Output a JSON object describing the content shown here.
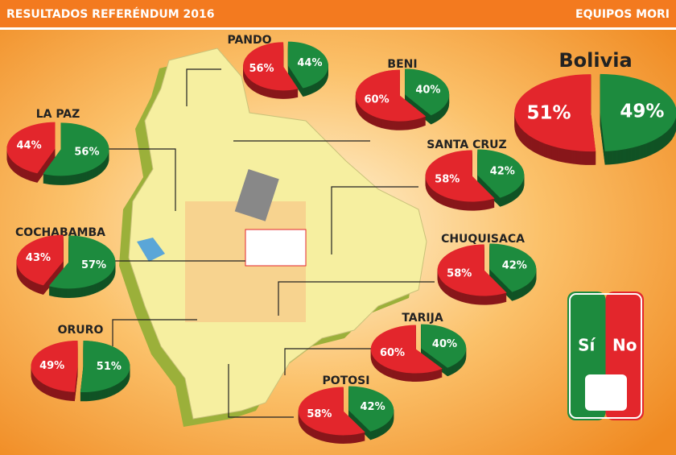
{
  "header": {
    "title": "RESULTADOS REFERÉNDUM 2016",
    "credit": "EQUIPOS MORI"
  },
  "legend": {
    "items": [
      {
        "label": "Sí",
        "color": "#1d8b3e"
      },
      {
        "label": "No",
        "color": "#e3262c"
      }
    ]
  },
  "chart_data": [
    {
      "type": "pie",
      "title": "PANDO",
      "values": [
        44,
        56
      ],
      "value_labels": [
        "44%",
        "56%"
      ]
    },
    {
      "type": "pie",
      "title": "BENI",
      "values": [
        40,
        60
      ],
      "value_labels": [
        "40%",
        "60%"
      ]
    },
    {
      "type": "pie",
      "title": "LA PAZ",
      "values": [
        56,
        44
      ],
      "value_labels": [
        "56%",
        "44%"
      ]
    },
    {
      "type": "pie",
      "title": "SANTA CRUZ",
      "values": [
        42,
        58
      ],
      "value_labels": [
        "42%",
        "58%"
      ]
    },
    {
      "type": "pie",
      "title": "COCHABAMBA",
      "values": [
        57,
        43
      ],
      "value_labels": [
        "57%",
        "43%"
      ]
    },
    {
      "type": "pie",
      "title": "CHUQUISACA",
      "values": [
        42,
        58
      ],
      "value_labels": [
        "42%",
        "58%"
      ]
    },
    {
      "type": "pie",
      "title": "ORURO",
      "values": [
        51,
        49
      ],
      "value_labels": [
        "51%",
        "49%"
      ]
    },
    {
      "type": "pie",
      "title": "TARIJA",
      "values": [
        40,
        60
      ],
      "value_labels": [
        "40%",
        "60%"
      ]
    },
    {
      "type": "pie",
      "title": "POTOSI",
      "values": [
        42,
        58
      ],
      "value_labels": [
        "42%",
        "58%"
      ]
    },
    {
      "type": "pie",
      "title": "Bolivia",
      "values": [
        49,
        51
      ],
      "value_labels": [
        "49%",
        "51%"
      ]
    }
  ]
}
